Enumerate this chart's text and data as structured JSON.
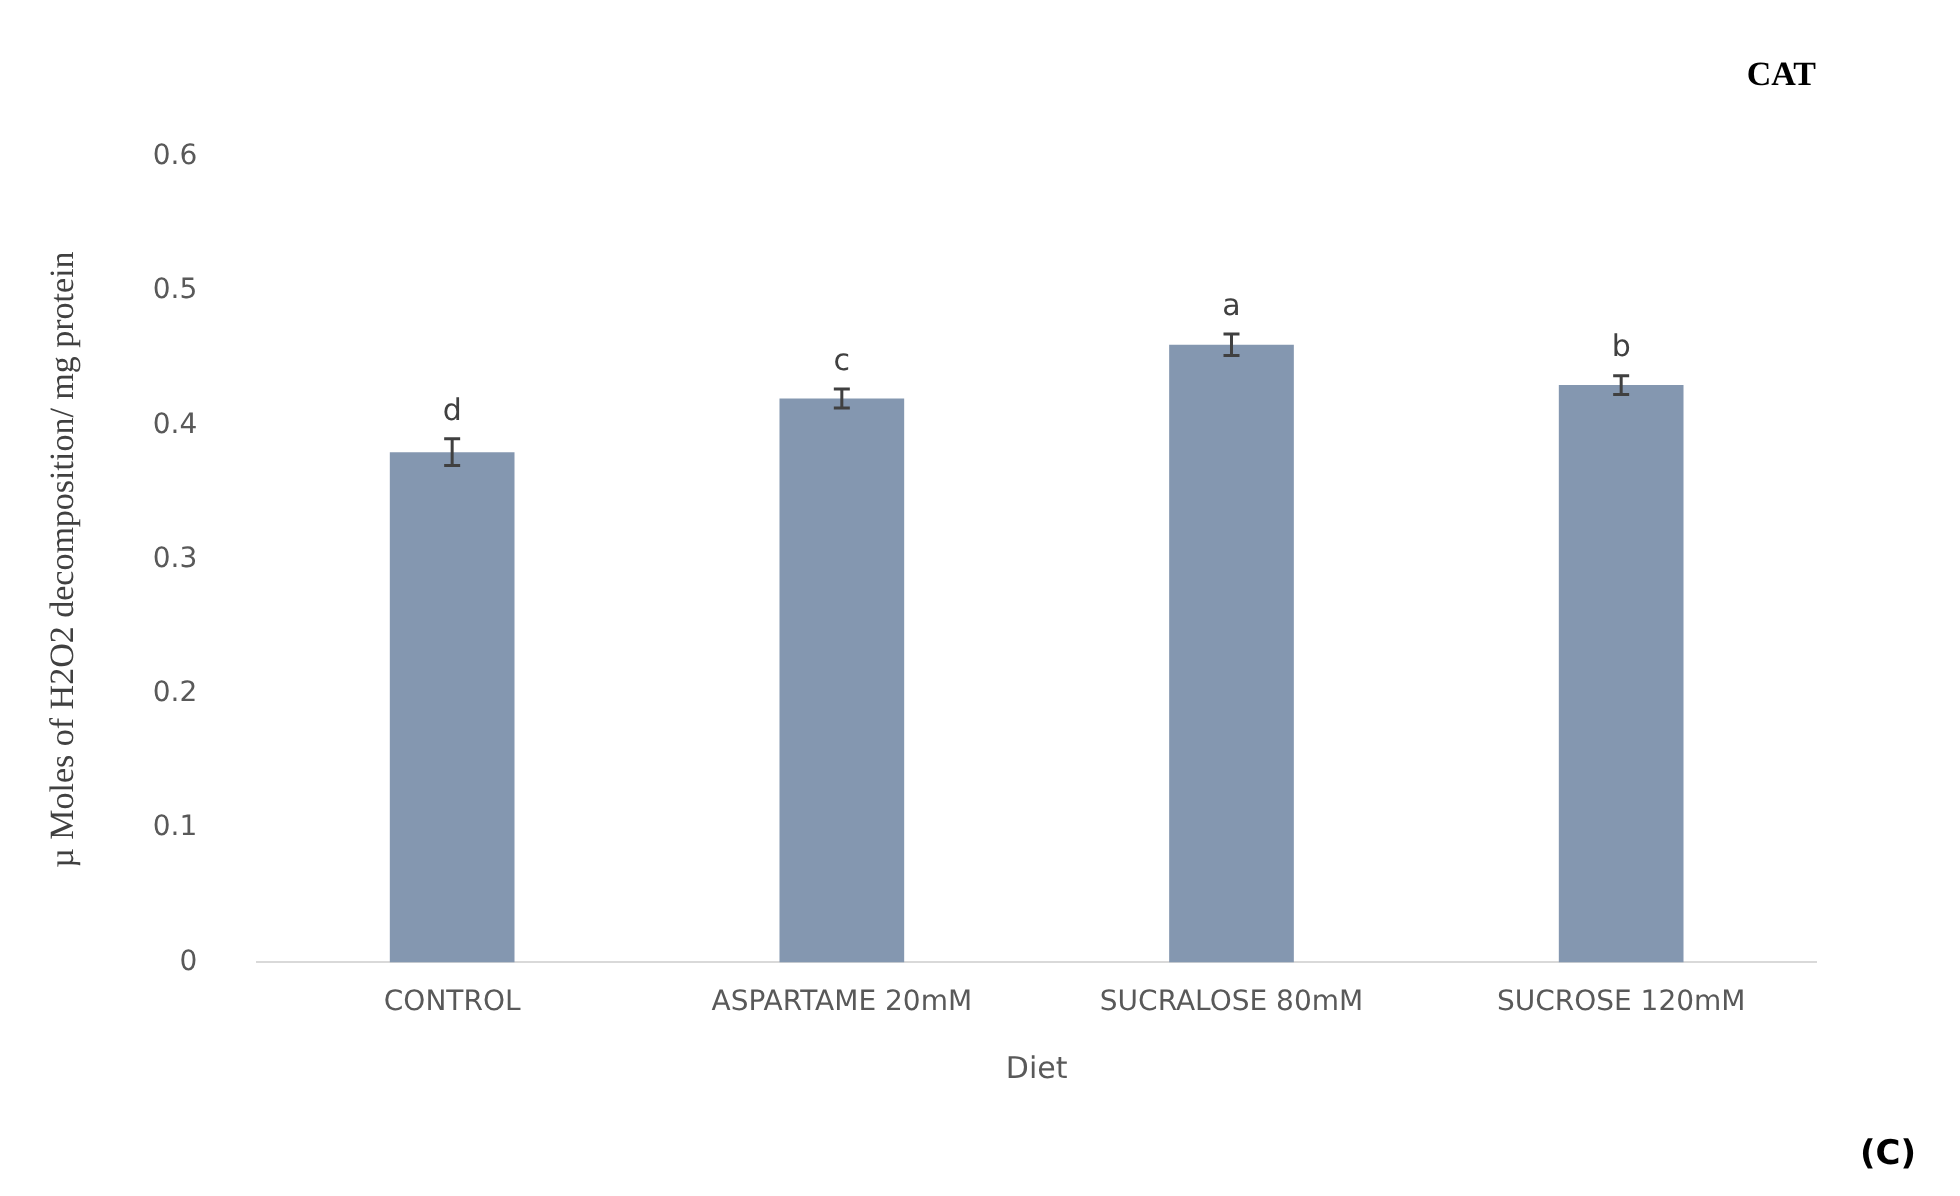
{
  "chart_data": {
    "type": "bar",
    "title": "CAT",
    "xlabel": "Diet",
    "ylabel": "µ Moles of H2O2 decomposition/ mg protein",
    "categories": [
      "CONTROL",
      "ASPARTAME 20mM",
      "SUCRALOSE 80mM",
      "SUCROSE 120mM"
    ],
    "values": [
      0.38,
      0.42,
      0.46,
      0.43
    ],
    "errors": [
      0.01,
      0.007,
      0.008,
      0.007
    ],
    "color": "#8497b0",
    "ylim": [
      0,
      0.6
    ],
    "yticks": [
      0,
      0.1,
      0.2,
      0.3,
      0.4,
      0.5,
      0.6
    ],
    "grid": false,
    "legend": false,
    "annotations": [
      {
        "text": "d",
        "x": "CONTROL",
        "y": 0.38
      },
      {
        "text": "c",
        "x": "ASPARTAME 20mM",
        "y": 0.42
      },
      {
        "text": "a",
        "x": "SUCRALOSE 80mM",
        "y": 0.46
      },
      {
        "text": "b",
        "x": "SUCROSE 120mM",
        "y": 0.43
      },
      "(C)"
    ]
  }
}
